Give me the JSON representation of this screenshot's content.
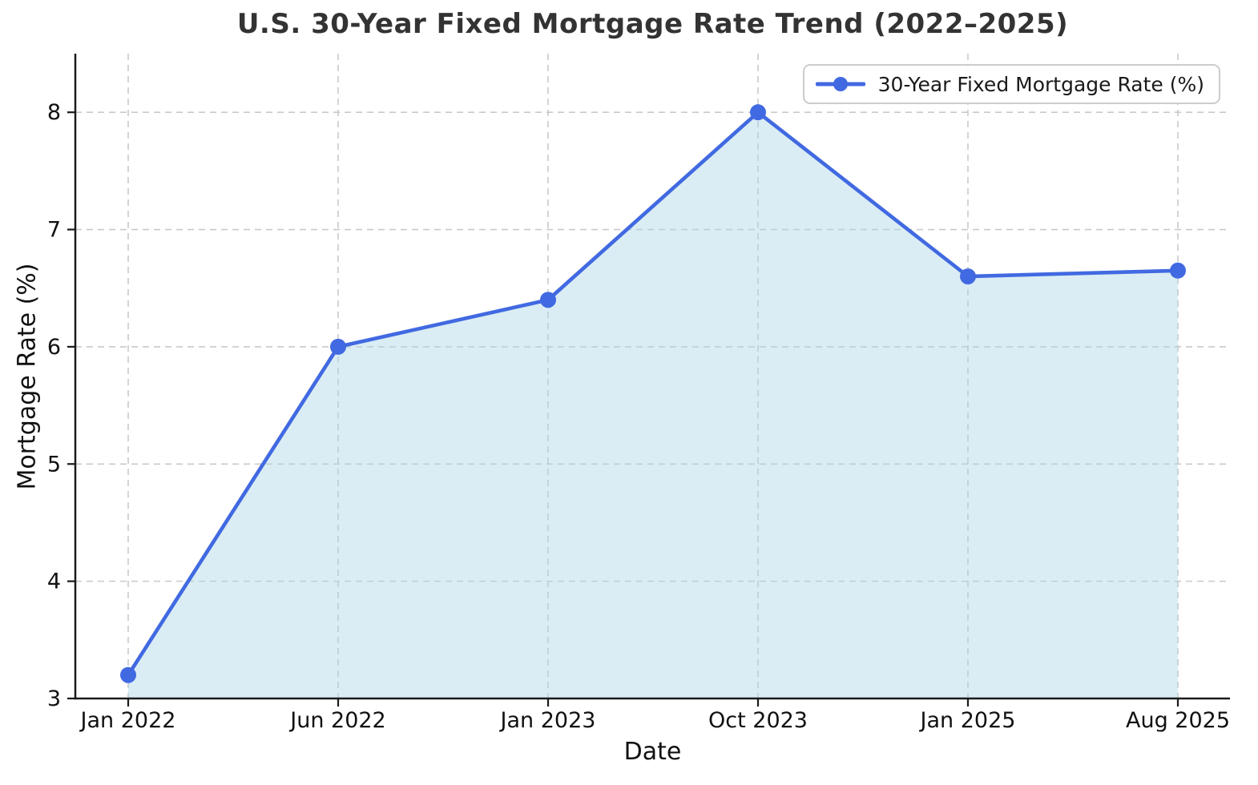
{
  "title": "U.S. 30-Year Fixed Mortgage Rate Trend (2022–2025)",
  "chart_data": {
    "type": "line",
    "categories": [
      "Jan 2022",
      "Jun 2022",
      "Jan 2023",
      "Oct 2023",
      "Jan 2025",
      "Aug 2025"
    ],
    "series": [
      {
        "name": "30-Year Fixed Mortgage Rate (%)",
        "values": [
          3.2,
          6.0,
          6.4,
          8.0,
          6.6,
          6.65
        ]
      }
    ],
    "title": "U.S. 30-Year Fixed Mortgage Rate Trend (2022–2025)",
    "xlabel": "Date",
    "ylabel": "Mortgage Rate (%)",
    "ylim": [
      3,
      8.5
    ],
    "yticks": [
      3,
      4,
      5,
      6,
      7,
      8
    ],
    "grid": true,
    "grid_style": "dashed",
    "area_fill": true,
    "legend_position": "upper right",
    "colors": {
      "line": "#4169E1",
      "marker": "#4169E1",
      "area": "rgba(173, 216, 230, 0.45)",
      "grid": "#c9c9c9",
      "axis": "#1a1a1a",
      "title": "#333333",
      "tick_label": "#111111"
    }
  }
}
